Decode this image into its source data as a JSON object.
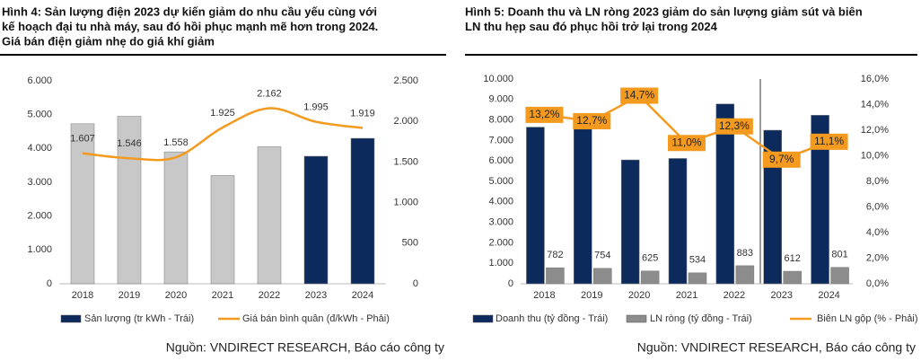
{
  "chart_data": [
    {
      "type": "bar_line",
      "title": [
        "Hình 4: Sản lượng điện 2023 dự kiến giảm do nhu cầu yếu cùng với",
        "kế hoạch đại tu nhà máy, sau đó hồi phục mạnh mẽ hơn trong 2024.",
        "Giá bán điện giảm nhẹ do giá khí giảm"
      ],
      "categories": [
        "2018",
        "2019",
        "2020",
        "2021",
        "2022",
        "2023",
        "2024"
      ],
      "ylim": [
        0,
        6000
      ],
      "yticks": [
        {
          "value": 0,
          "label": "0"
        },
        {
          "value": 1000,
          "label": "1.000"
        },
        {
          "value": 2000,
          "label": "2.000"
        },
        {
          "value": 3000,
          "label": "3.000"
        },
        {
          "value": 4000,
          "label": "4.000"
        },
        {
          "value": 5000,
          "label": "5.000"
        },
        {
          "value": 6000,
          "label": "6.000"
        }
      ],
      "y2lim": [
        0,
        2500
      ],
      "y2ticks": [
        {
          "value": 0,
          "label": "0"
        },
        {
          "value": 500,
          "label": "500"
        },
        {
          "value": 1000,
          "label": "1.000"
        },
        {
          "value": 1500,
          "label": "1.500"
        },
        {
          "value": 2000,
          "label": "2.000"
        },
        {
          "value": 2500,
          "label": "2.500"
        }
      ],
      "series": [
        {
          "name": "Sản lượng (tr kWh - Trái)",
          "type": "bar",
          "color": "#0d2a5c",
          "colors": [
            "#c8c8c8",
            "#c8c8c8",
            "#c8c8c8",
            "#c8c8c8",
            "#c8c8c8",
            "#0d2a5c",
            "#0d2a5c"
          ],
          "values": [
            4730,
            4950,
            3900,
            3200,
            4050,
            3770,
            4300
          ]
        },
        {
          "name": "Giá bán bình quân (đ/kWh - Phải)",
          "type": "line",
          "axis": "y2",
          "color": "#f39a1f",
          "values": [
            1607,
            1546,
            1558,
            1925,
            2162,
            1995,
            1919
          ],
          "value_labels": [
            "1.607",
            "1.546",
            "1.558",
            "1.925",
            "2.162",
            "1.995",
            "1.919"
          ]
        }
      ],
      "source": "Nguồn: VNDIRECT RESEARCH, Báo cáo công ty"
    },
    {
      "type": "bar_line",
      "title": [
        "Hình 5: Doanh thu và LN ròng 2023 giảm do sản lượng giảm sút và biên",
        "LN thu hẹp sau đó phục hồi trở lại trong 2024"
      ],
      "categories": [
        "2018",
        "2019",
        "2020",
        "2021",
        "2022",
        "2023",
        "2024"
      ],
      "ylim": [
        0,
        10000
      ],
      "yticks": [
        {
          "value": 0,
          "label": "0"
        },
        {
          "value": 1000,
          "label": "1.000"
        },
        {
          "value": 2000,
          "label": "2.000"
        },
        {
          "value": 3000,
          "label": "3.000"
        },
        {
          "value": 4000,
          "label": "4.000"
        },
        {
          "value": 5000,
          "label": "5.000"
        },
        {
          "value": 6000,
          "label": "6.000"
        },
        {
          "value": 7000,
          "label": "7.000"
        },
        {
          "value": 8000,
          "label": "8.000"
        },
        {
          "value": 9000,
          "label": "9.000"
        },
        {
          "value": 10000,
          "label": "10.000"
        }
      ],
      "y2lim": [
        0,
        16
      ],
      "y2ticks": [
        {
          "value": 0,
          "label": "0,0%"
        },
        {
          "value": 2,
          "label": "2,0%"
        },
        {
          "value": 4,
          "label": "4,0%"
        },
        {
          "value": 6,
          "label": "6,0%"
        },
        {
          "value": 8,
          "label": "8,0%"
        },
        {
          "value": 10,
          "label": "10,0%"
        },
        {
          "value": 12,
          "label": "12,0%"
        },
        {
          "value": 14,
          "label": "14,0%"
        },
        {
          "value": 16,
          "label": "16,0%"
        }
      ],
      "series": [
        {
          "name": "Doanh thu (tỷ đồng - Trái)",
          "type": "bar",
          "color": "#0d2a5c",
          "values": [
            7650,
            7650,
            6050,
            6120,
            8780,
            7500,
            8230
          ]
        },
        {
          "name": "LN ròng (tỷ đồng - Trái)",
          "type": "bar",
          "color": "#8c8c8c",
          "values": [
            782,
            754,
            625,
            534,
            883,
            612,
            801
          ],
          "labels": true
        },
        {
          "name": "Biên LN gộp (% - Phải)",
          "type": "line",
          "axis": "y2",
          "color": "#f39a1f",
          "values": [
            13.2,
            12.7,
            14.7,
            11.0,
            12.3,
            9.7,
            11.1
          ],
          "value_labels": [
            "13,2%",
            "12,7%",
            "14,7%",
            "11,0%",
            "12,3%",
            "9,7%",
            "11,1%"
          ],
          "boxed": true
        }
      ],
      "source": "Nguồn: VNDIRECT RESEARCH, Báo cáo công ty"
    }
  ]
}
